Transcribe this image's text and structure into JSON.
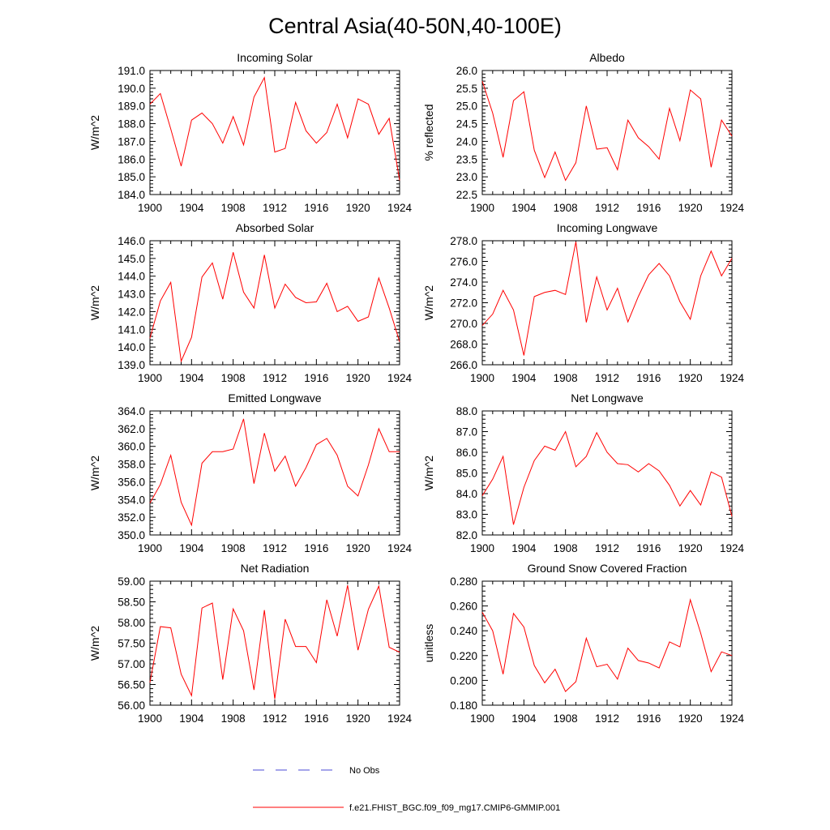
{
  "figure": {
    "title": "Central Asia(40-50N,40-100E)"
  },
  "legend": [
    {
      "label": "No Obs",
      "color": "#4b4bd6",
      "style": "dashed"
    },
    {
      "label": "f.e21.FHIST_BGC.f09_f09_mg17.CMIP6-GMMIP.001",
      "color": "#ff0000",
      "style": "solid"
    }
  ],
  "chart_data": [
    {
      "type": "line",
      "title": "Incoming Solar",
      "ylabel": "W/m^2",
      "xlim": [
        1900,
        1924
      ],
      "ylim": [
        184,
        191
      ],
      "xticks": [
        "1900",
        "1904",
        "1908",
        "1912",
        "1916",
        "1920",
        "1924"
      ],
      "yticks": [
        "184.0",
        "185.0",
        "186.0",
        "187.0",
        "188.0",
        "189.0",
        "190.0",
        "191.0"
      ],
      "x": [
        1900,
        1901,
        1902,
        1903,
        1904,
        1905,
        1906,
        1907,
        1908,
        1909,
        1910,
        1911,
        1912,
        1913,
        1914,
        1915,
        1916,
        1917,
        1918,
        1919,
        1920,
        1921,
        1922,
        1923,
        1924
      ],
      "series": [
        {
          "name": "f.e21.FHIST_BGC.f09_f09_mg17.CMIP6-GMMIP.001",
          "color": "#ff0000",
          "values": [
            189.1,
            189.7,
            187.7,
            185.6,
            188.2,
            188.6,
            188.0,
            186.9,
            188.4,
            186.8,
            189.5,
            190.6,
            186.4,
            186.6,
            189.2,
            187.6,
            186.9,
            187.5,
            189.1,
            187.2,
            189.4,
            189.1,
            187.4,
            188.3,
            184.8
          ]
        }
      ]
    },
    {
      "type": "line",
      "title": "Albedo",
      "ylabel": "% reflected",
      "xlim": [
        1900,
        1924
      ],
      "ylim": [
        22.5,
        26
      ],
      "xticks": [
        "1900",
        "1904",
        "1908",
        "1912",
        "1916",
        "1920",
        "1924"
      ],
      "yticks": [
        "22.5",
        "23.0",
        "23.5",
        "24.0",
        "24.5",
        "25.0",
        "25.5",
        "26.0"
      ],
      "x": [
        1900,
        1901,
        1902,
        1903,
        1904,
        1905,
        1906,
        1907,
        1908,
        1909,
        1910,
        1911,
        1912,
        1913,
        1914,
        1915,
        1916,
        1917,
        1918,
        1919,
        1920,
        1921,
        1922,
        1923,
        1924
      ],
      "series": [
        {
          "name": "f.e21.FHIST_BGC.f09_f09_mg17.CMIP6-GMMIP.001",
          "color": "#ff0000",
          "values": [
            25.7,
            24.8,
            23.55,
            25.15,
            25.4,
            23.75,
            22.98,
            23.7,
            22.9,
            23.4,
            25.0,
            23.78,
            23.82,
            23.2,
            24.6,
            24.1,
            23.85,
            23.5,
            24.93,
            24.02,
            25.45,
            25.2,
            23.27,
            24.6,
            24.15
          ]
        }
      ]
    },
    {
      "type": "line",
      "title": "Absorbed Solar",
      "ylabel": "W/m^2",
      "xlim": [
        1900,
        1924
      ],
      "ylim": [
        139,
        146
      ],
      "xticks": [
        "1900",
        "1904",
        "1908",
        "1912",
        "1916",
        "1920",
        "1924"
      ],
      "yticks": [
        "139.0",
        "140.0",
        "141.0",
        "142.0",
        "143.0",
        "144.0",
        "145.0",
        "146.0"
      ],
      "x": [
        1900,
        1901,
        1902,
        1903,
        1904,
        1905,
        1906,
        1907,
        1908,
        1909,
        1910,
        1911,
        1912,
        1913,
        1914,
        1915,
        1916,
        1917,
        1918,
        1919,
        1920,
        1921,
        1922,
        1923,
        1924
      ],
      "series": [
        {
          "name": "f.e21.FHIST_BGC.f09_f09_mg17.CMIP6-GMMIP.001",
          "color": "#ff0000",
          "values": [
            140.5,
            142.6,
            143.65,
            139.2,
            140.55,
            143.95,
            144.75,
            142.7,
            145.35,
            143.1,
            142.2,
            145.2,
            142.2,
            143.55,
            142.8,
            142.5,
            142.55,
            143.6,
            142.0,
            142.3,
            141.45,
            141.7,
            143.9,
            142.2,
            140.3
          ]
        }
      ]
    },
    {
      "type": "line",
      "title": "Incoming Longwave",
      "ylabel": "W/m^2",
      "xlim": [
        1900,
        1924
      ],
      "ylim": [
        266,
        278
      ],
      "xticks": [
        "1900",
        "1904",
        "1908",
        "1912",
        "1916",
        "1920",
        "1924"
      ],
      "yticks": [
        "266.0",
        "268.0",
        "270.0",
        "272.0",
        "274.0",
        "276.0",
        "278.0"
      ],
      "x": [
        1900,
        1901,
        1902,
        1903,
        1904,
        1905,
        1906,
        1907,
        1908,
        1909,
        1910,
        1911,
        1912,
        1913,
        1914,
        1915,
        1916,
        1917,
        1918,
        1919,
        1920,
        1921,
        1922,
        1923,
        1924
      ],
      "series": [
        {
          "name": "f.e21.FHIST_BGC.f09_f09_mg17.CMIP6-GMMIP.001",
          "color": "#ff0000",
          "values": [
            269.8,
            270.9,
            273.2,
            271.3,
            266.9,
            272.6,
            273.0,
            273.2,
            272.8,
            277.9,
            270.1,
            274.5,
            271.3,
            273.4,
            270.15,
            272.6,
            274.7,
            275.8,
            274.6,
            272.1,
            270.4,
            274.6,
            277.0,
            274.6,
            276.3
          ]
        }
      ]
    },
    {
      "type": "line",
      "title": "Emitted Longwave",
      "ylabel": "W/m^2",
      "xlim": [
        1900,
        1924
      ],
      "ylim": [
        350,
        364
      ],
      "xticks": [
        "1900",
        "1904",
        "1908",
        "1912",
        "1916",
        "1920",
        "1924"
      ],
      "yticks": [
        "350.0",
        "352.0",
        "354.0",
        "356.0",
        "358.0",
        "360.0",
        "362.0",
        "364.0"
      ],
      "x": [
        1900,
        1901,
        1902,
        1903,
        1904,
        1905,
        1906,
        1907,
        1908,
        1909,
        1910,
        1911,
        1912,
        1913,
        1914,
        1915,
        1916,
        1917,
        1918,
        1919,
        1920,
        1921,
        1922,
        1923,
        1924
      ],
      "series": [
        {
          "name": "f.e21.FHIST_BGC.f09_f09_mg17.CMIP6-GMMIP.001",
          "color": "#ff0000",
          "values": [
            353.6,
            355.7,
            359.0,
            353.7,
            351.1,
            358.1,
            359.4,
            359.4,
            359.7,
            363.1,
            355.8,
            361.5,
            357.2,
            358.9,
            355.5,
            357.6,
            360.2,
            360.9,
            359.0,
            355.5,
            354.4,
            357.9,
            362.0,
            359.4,
            359.4
          ]
        }
      ]
    },
    {
      "type": "line",
      "title": "Net Longwave",
      "ylabel": "W/m^2",
      "xlim": [
        1900,
        1924
      ],
      "ylim": [
        82,
        88
      ],
      "xticks": [
        "1900",
        "1904",
        "1908",
        "1912",
        "1916",
        "1920",
        "1924"
      ],
      "yticks": [
        "82.0",
        "83.0",
        "84.0",
        "85.0",
        "86.0",
        "87.0",
        "88.0"
      ],
      "x": [
        1900,
        1901,
        1902,
        1903,
        1904,
        1905,
        1906,
        1907,
        1908,
        1909,
        1910,
        1911,
        1912,
        1913,
        1914,
        1915,
        1916,
        1917,
        1918,
        1919,
        1920,
        1921,
        1922,
        1923,
        1924
      ],
      "series": [
        {
          "name": "f.e21.FHIST_BGC.f09_f09_mg17.CMIP6-GMMIP.001",
          "color": "#ff0000",
          "values": [
            83.9,
            84.7,
            85.8,
            82.5,
            84.3,
            85.6,
            86.3,
            86.1,
            87.0,
            85.3,
            85.8,
            86.95,
            86.0,
            85.45,
            85.4,
            85.05,
            85.45,
            85.1,
            84.4,
            83.4,
            84.15,
            83.45,
            85.05,
            84.8,
            82.9
          ]
        }
      ]
    },
    {
      "type": "line",
      "title": "Net Radiation",
      "ylabel": "W/m^2",
      "xlim": [
        1900,
        1924
      ],
      "ylim": [
        56,
        59
      ],
      "xticks": [
        "1900",
        "1904",
        "1908",
        "1912",
        "1916",
        "1920",
        "1924"
      ],
      "yticks": [
        "56.00",
        "56.50",
        "57.00",
        "57.50",
        "58.00",
        "58.50",
        "59.00"
      ],
      "x": [
        1900,
        1901,
        1902,
        1903,
        1904,
        1905,
        1906,
        1907,
        1908,
        1909,
        1910,
        1911,
        1912,
        1913,
        1914,
        1915,
        1916,
        1917,
        1918,
        1919,
        1920,
        1921,
        1922,
        1923,
        1924
      ],
      "series": [
        {
          "name": "f.e21.FHIST_BGC.f09_f09_mg17.CMIP6-GMMIP.001",
          "color": "#ff0000",
          "values": [
            56.55,
            57.9,
            57.87,
            56.75,
            56.23,
            58.35,
            58.47,
            56.62,
            58.33,
            57.8,
            56.37,
            58.3,
            56.15,
            58.08,
            57.42,
            57.42,
            57.03,
            58.55,
            57.67,
            58.9,
            57.33,
            58.32,
            58.88,
            57.4,
            57.28
          ]
        }
      ]
    },
    {
      "type": "line",
      "title": "Ground Snow Covered Fraction",
      "ylabel": "unitless",
      "xlim": [
        1900,
        1924
      ],
      "ylim": [
        0.18,
        0.28
      ],
      "xticks": [
        "1900",
        "1904",
        "1908",
        "1912",
        "1916",
        "1920",
        "1924"
      ],
      "yticks": [
        "0.180",
        "0.200",
        "0.220",
        "0.240",
        "0.260",
        "0.280"
      ],
      "x": [
        1900,
        1901,
        1902,
        1903,
        1904,
        1905,
        1906,
        1907,
        1908,
        1909,
        1910,
        1911,
        1912,
        1913,
        1914,
        1915,
        1916,
        1917,
        1918,
        1919,
        1920,
        1921,
        1922,
        1923,
        1924
      ],
      "series": [
        {
          "name": "f.e21.FHIST_BGC.f09_f09_mg17.CMIP6-GMMIP.001",
          "color": "#ff0000",
          "values": [
            0.255,
            0.24,
            0.205,
            0.254,
            0.243,
            0.212,
            0.198,
            0.209,
            0.191,
            0.199,
            0.234,
            0.211,
            0.213,
            0.201,
            0.226,
            0.216,
            0.214,
            0.21,
            0.231,
            0.227,
            0.265,
            0.238,
            0.207,
            0.223,
            0.22
          ]
        }
      ]
    }
  ]
}
